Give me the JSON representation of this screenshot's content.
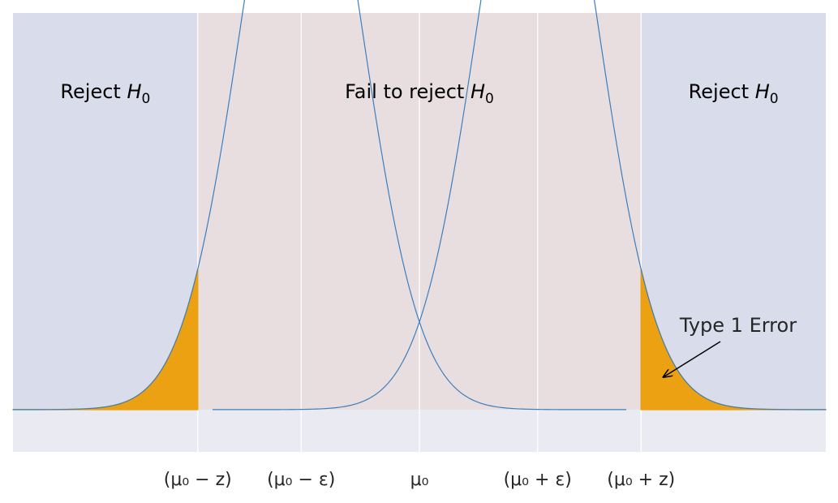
{
  "chart_data": {
    "type": "area",
    "title": "",
    "xlabel": "",
    "ylabel": "",
    "xlim": [
      -2.75,
      2.75
    ],
    "ylim": [
      -0.065,
      0.61
    ],
    "grid": true,
    "x_ticks": [
      {
        "x": -1.5,
        "label": "(μ₀ − z)"
      },
      {
        "x": -0.8,
        "label": "(μ₀ − ε)"
      },
      {
        "x": 0.0,
        "label": "μ₀"
      },
      {
        "x": 0.8,
        "label": "(μ₀ + ε)"
      },
      {
        "x": 1.5,
        "label": "(μ₀ + z)"
      }
    ],
    "regions": [
      {
        "name": "reject_left",
        "x": [
          -2.75,
          -1.5
        ],
        "label": "Reject",
        "label_symbol": "H",
        "label_sub": "0",
        "color": "#d9dceb"
      },
      {
        "name": "fail_to_reject",
        "x": [
          -1.5,
          1.5
        ],
        "label": "Fail to reject",
        "label_symbol": "H",
        "label_sub": "0",
        "color": "#e8dedf"
      },
      {
        "name": "reject_right",
        "x": [
          1.5,
          2.75
        ],
        "label": "Reject",
        "label_symbol": "H",
        "label_sub": "0",
        "color": "#d9dceb"
      }
    ],
    "series": [
      {
        "mean": -0.8,
        "sd": 0.4,
        "x_range": [
          -2.75,
          1.4
        ],
        "color": "#3b7fbf"
      },
      {
        "mean": 0.8,
        "sd": 0.4,
        "x_range": [
          -1.4,
          2.75
        ],
        "color": "#3b7fbf"
      }
    ],
    "shaded_areas": [
      {
        "x": [
          -2.75,
          -1.5
        ],
        "from_series": 0,
        "color": "#eba112"
      },
      {
        "x": [
          1.5,
          2.75
        ],
        "from_series": 1,
        "color": "#eba112"
      }
    ],
    "annotations": [
      {
        "text": "Type 1 Error",
        "arrow_target": {
          "x": 1.65,
          "y": 0.05
        }
      }
    ],
    "colors": {
      "axes_background": "#eaeaf2",
      "grid": "#ffffff",
      "curve": "#3b7fbf",
      "shade": "#eba112",
      "arrow": "#000000"
    }
  }
}
